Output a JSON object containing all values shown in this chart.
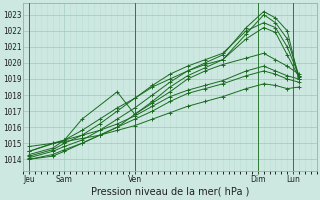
{
  "title": "Pression niveau de la mer( hPa )",
  "ylabel_values": [
    1014,
    1015,
    1016,
    1017,
    1018,
    1019,
    1020,
    1021,
    1022,
    1023
  ],
  "ylim": [
    1013.3,
    1023.7
  ],
  "xlim": [
    0,
    100
  ],
  "background_color": "#cce8e0",
  "grid_color_major": "#99ccbb",
  "grid_color_minor": "#bbddd4",
  "line_color": "#1a6b20",
  "xtick_positions": [
    2,
    14,
    38,
    80,
    92
  ],
  "xtick_labels": [
    "Jeu",
    "Sam",
    "Ven",
    "Dim",
    "Lun"
  ],
  "vline_positions": [
    2,
    38,
    80,
    92
  ],
  "series": [
    {
      "x": [
        2,
        10,
        14,
        20,
        26,
        32,
        38,
        44,
        50,
        56,
        62,
        68,
        76,
        82,
        86,
        90,
        94
      ],
      "y": [
        1014.1,
        1014.5,
        1014.8,
        1015.2,
        1015.8,
        1016.5,
        1017.2,
        1018.0,
        1018.8,
        1019.5,
        1020.0,
        1020.5,
        1022.2,
        1023.2,
        1022.8,
        1022.0,
        1019.0
      ]
    },
    {
      "x": [
        2,
        10,
        14,
        20,
        26,
        32,
        38,
        44,
        50,
        56,
        62,
        68,
        76,
        82,
        86,
        90,
        94
      ],
      "y": [
        1014.0,
        1014.3,
        1014.6,
        1015.0,
        1015.5,
        1016.0,
        1016.8,
        1017.6,
        1018.5,
        1019.2,
        1019.7,
        1020.2,
        1021.8,
        1023.0,
        1022.5,
        1021.5,
        1019.2
      ]
    },
    {
      "x": [
        2,
        10,
        14,
        20,
        26,
        32,
        38,
        44,
        50,
        56,
        62,
        68,
        76,
        82,
        86,
        90,
        94
      ],
      "y": [
        1014.2,
        1014.6,
        1015.0,
        1015.5,
        1016.2,
        1017.0,
        1017.8,
        1018.6,
        1019.3,
        1019.8,
        1020.2,
        1020.6,
        1022.0,
        1022.5,
        1022.2,
        1021.0,
        1019.2
      ]
    },
    {
      "x": [
        2,
        10,
        14,
        20,
        26,
        32,
        38,
        44,
        50,
        56,
        62,
        68,
        76,
        82,
        86,
        90,
        94
      ],
      "y": [
        1014.3,
        1014.7,
        1015.2,
        1015.8,
        1016.5,
        1017.2,
        1017.8,
        1018.5,
        1019.0,
        1019.5,
        1019.9,
        1020.2,
        1021.5,
        1022.2,
        1021.9,
        1020.5,
        1019.1
      ]
    },
    {
      "x": [
        2,
        10,
        14,
        20,
        26,
        32,
        38,
        44,
        50,
        56,
        62,
        68,
        76,
        82,
        86,
        90,
        94
      ],
      "y": [
        1014.5,
        1015.0,
        1015.2,
        1015.5,
        1015.8,
        1016.2,
        1016.7,
        1017.3,
        1017.9,
        1018.3,
        1018.6,
        1018.9,
        1019.5,
        1019.8,
        1019.5,
        1019.2,
        1019.0
      ]
    },
    {
      "x": [
        2,
        10,
        14,
        20,
        26,
        32,
        38,
        44,
        50,
        56,
        62,
        68,
        76,
        82,
        86,
        90,
        94
      ],
      "y": [
        1014.0,
        1014.2,
        1014.5,
        1015.0,
        1015.5,
        1016.0,
        1016.5,
        1017.0,
        1017.6,
        1018.1,
        1018.4,
        1018.7,
        1019.2,
        1019.5,
        1019.3,
        1019.0,
        1018.8
      ]
    },
    {
      "x": [
        2,
        10,
        14,
        20,
        26,
        32,
        38,
        44,
        50,
        56,
        62,
        68,
        76,
        82,
        86,
        90,
        94
      ],
      "y": [
        1014.8,
        1015.0,
        1015.1,
        1015.3,
        1015.5,
        1015.8,
        1016.1,
        1016.5,
        1016.9,
        1017.3,
        1017.6,
        1017.9,
        1018.4,
        1018.7,
        1018.6,
        1018.4,
        1018.5
      ]
    },
    {
      "x": [
        2,
        14,
        20,
        32,
        38,
        44,
        50,
        56,
        62,
        68,
        76,
        82,
        86,
        90,
        94
      ],
      "y": [
        1014.5,
        1015.2,
        1016.5,
        1018.2,
        1016.8,
        1017.5,
        1018.2,
        1019.0,
        1019.5,
        1019.9,
        1020.3,
        1020.6,
        1020.2,
        1019.8,
        1019.3
      ]
    }
  ],
  "marker": "+",
  "marker_size": 2.5,
  "line_width": 0.7,
  "vline_color": "#1a6b20",
  "vline_lw": 0.6,
  "tick_fontsize": 5.5,
  "xlabel_fontsize": 7.0
}
